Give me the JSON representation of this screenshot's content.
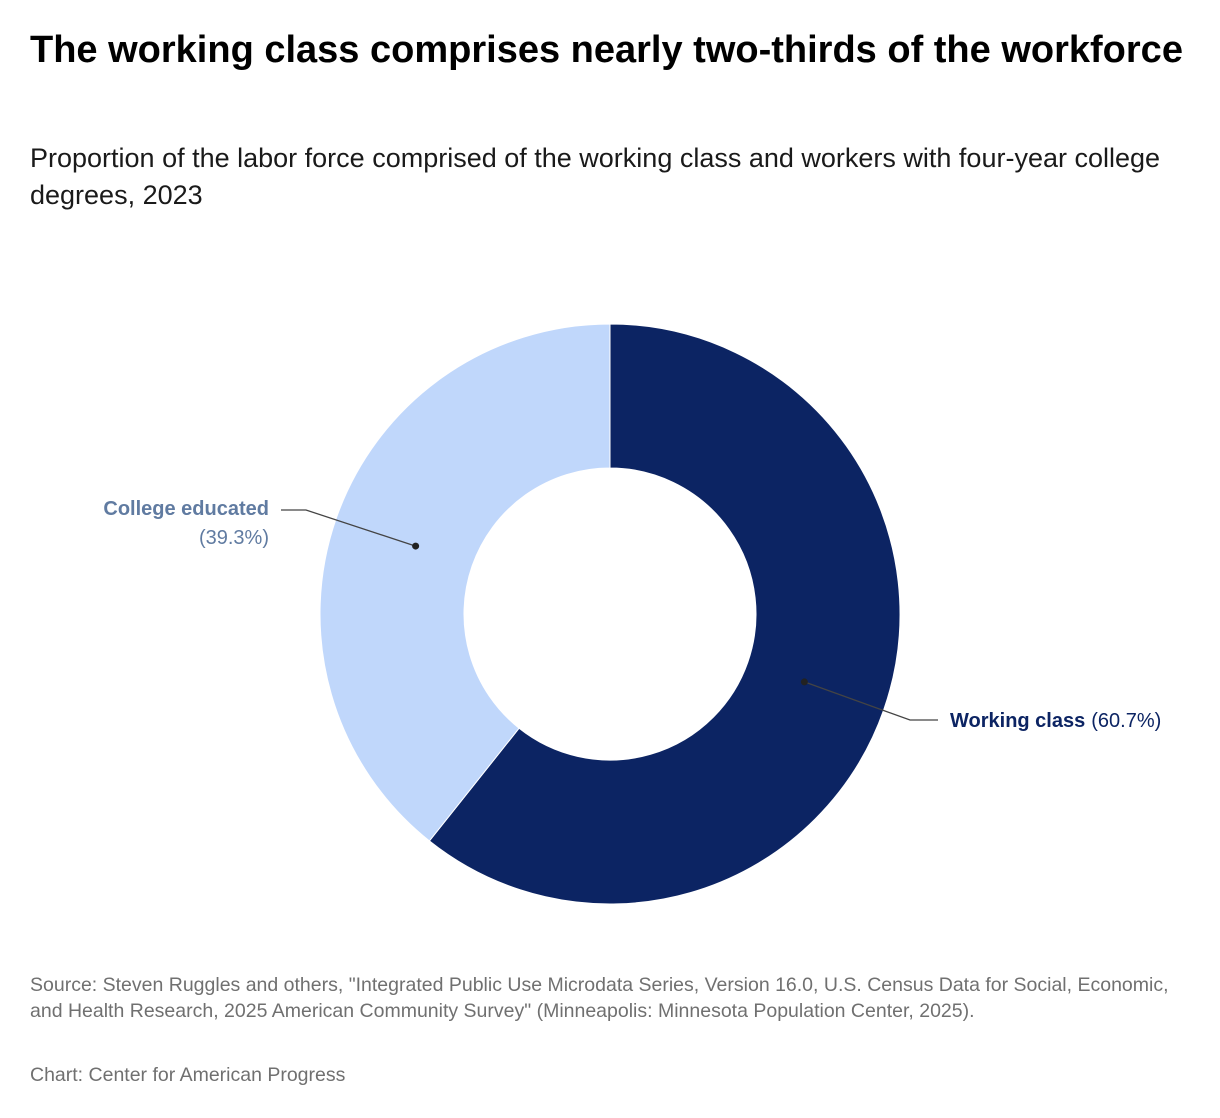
{
  "title": "The working class comprises nearly two-thirds of the workforce",
  "subtitle": "Proportion of the labor force comprised of the working class and workers with four-year college degrees, 2023",
  "source": "Source: Steven Ruggles and others, \"Integrated Public Use Microdata Series, Version 16.0, U.S. Census Data for Social, Economic, and Health Research, 2025 American Community Survey\" (Minneapolis: Minnesota Population Center, 2025).",
  "credit": "Chart: Center for American Progress",
  "chart_data": {
    "type": "pie",
    "variant": "donut",
    "slices": [
      {
        "label": "Working class",
        "value": 60.7,
        "display": "(60.7%)",
        "color": "#0c2463",
        "label_color": "#0c2463"
      },
      {
        "label": "College educated",
        "value": 39.3,
        "display": "(39.3%)",
        "color": "#c0d7fb",
        "label_color": "#607ba1"
      }
    ]
  }
}
